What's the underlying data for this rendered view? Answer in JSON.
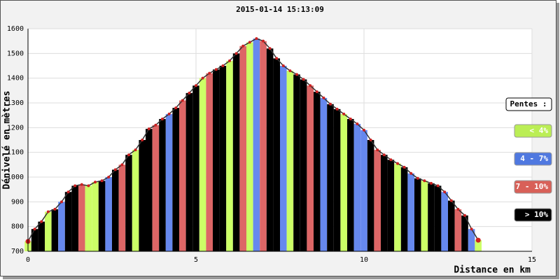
{
  "chart_data": {
    "type": "profile",
    "title": "2015-01-14 15:13:09",
    "y_label": "Dénivelé en mètres",
    "x_label": "Distance en km",
    "x": [
      0,
      0.2,
      0.4,
      0.6,
      0.8,
      1.0,
      1.2,
      1.4,
      1.6,
      1.8,
      2.0,
      2.2,
      2.4,
      2.6,
      2.8,
      3.0,
      3.2,
      3.4,
      3.6,
      3.8,
      4.0,
      4.2,
      4.4,
      4.6,
      4.8,
      5.0,
      5.2,
      5.4,
      5.6,
      5.8,
      6.0,
      6.2,
      6.4,
      6.6,
      6.8,
      7.0,
      7.2,
      7.4,
      7.6,
      7.8,
      8.0,
      8.2,
      8.4,
      8.6,
      8.8,
      9.0,
      9.2,
      9.4,
      9.6,
      9.8,
      10.0,
      10.2,
      10.4,
      10.6,
      10.8,
      11.0,
      11.2,
      11.4,
      11.6,
      11.8,
      12.0,
      12.2,
      12.4,
      12.6,
      12.8,
      13.0,
      13.2,
      13.4
    ],
    "values": [
      740,
      790,
      820,
      860,
      870,
      900,
      940,
      965,
      970,
      965,
      980,
      985,
      1000,
      1030,
      1050,
      1090,
      1110,
      1150,
      1195,
      1210,
      1235,
      1255,
      1280,
      1310,
      1340,
      1370,
      1400,
      1420,
      1435,
      1450,
      1470,
      1500,
      1530,
      1545,
      1560,
      1550,
      1520,
      1480,
      1450,
      1430,
      1415,
      1395,
      1370,
      1345,
      1320,
      1295,
      1275,
      1255,
      1235,
      1215,
      1190,
      1150,
      1110,
      1090,
      1070,
      1055,
      1040,
      1015,
      995,
      985,
      975,
      965,
      940,
      905,
      870,
      845,
      790,
      745
    ],
    "colors": [
      "#ccff66",
      "#000",
      "#000",
      "#ccff66",
      "#000",
      "#6688ee",
      "#000",
      "#000",
      "#dd6666",
      "#ccff66",
      "#ccff66",
      "#000",
      "#6688ee",
      "#000",
      "#dd6666",
      "#000",
      "#ccff66",
      "#000",
      "#000",
      "#dd6666",
      "#000",
      "#6688ee",
      "#000",
      "#dd6666",
      "#000",
      "#000",
      "#ccff66",
      "#dd6666",
      "#000",
      "#000",
      "#ccff66",
      "#000",
      "#dd6666",
      "#ccff66",
      "#6688ee",
      "#dd6666",
      "#000",
      "#000",
      "#6688ee",
      "#ccff66",
      "#000",
      "#000",
      "#dd6666",
      "#000",
      "#6688ee",
      "#000",
      "#000",
      "#ccff66",
      "#000",
      "#6688ee",
      "#6688ee",
      "#000",
      "#dd6666",
      "#000",
      "#000",
      "#ccff66",
      "#000",
      "#6688ee",
      "#000",
      "#ccff66",
      "#000",
      "#000",
      "#6688ee",
      "#000",
      "#dd6666",
      "#000",
      "#6688ee",
      "#ccff66"
    ],
    "line_color": "#333333",
    "marker_color": "#cc2222",
    "xlim": [
      0,
      15
    ],
    "xticks": [
      0,
      5,
      10,
      15
    ],
    "ylim": [
      700,
      1600
    ],
    "yticks": [
      700,
      800,
      900,
      1000,
      1100,
      1200,
      1300,
      1400,
      1500,
      1600
    ],
    "grid": true,
    "legend_title": "Pentes :",
    "legend": [
      {
        "name": "< 4%",
        "color": "#bbee55"
      },
      {
        "name": "4 - 7%",
        "color": "#4f78e0"
      },
      {
        "name": "7 - 10%",
        "color": "#d86058"
      },
      {
        "name": "> 10%",
        "color": "#000000"
      }
    ]
  }
}
